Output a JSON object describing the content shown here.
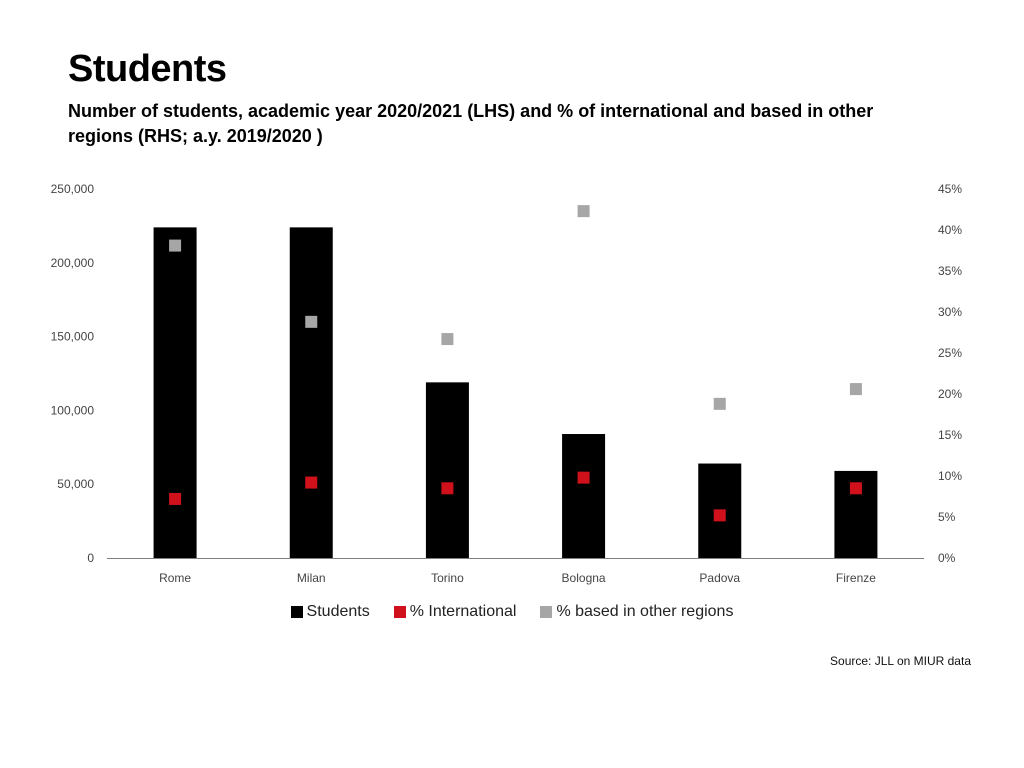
{
  "title": "Students",
  "subtitle": "Number of students, academic year 2020/2021 (LHS) and % of international and based in other regions (RHS; a.y. 2019/2020 )",
  "source": "Source: JLL on MIUR data",
  "colors": {
    "students": "#000000",
    "international": "#d0111b",
    "other_regions": "#a6a6a6",
    "axis": "#7f7f7f"
  },
  "chart_data": {
    "type": "bar",
    "categories": [
      "Rome",
      "Milan",
      "Torino",
      "Bologna",
      "Padova",
      "Firenze"
    ],
    "series": [
      {
        "name": "Students",
        "type": "bar",
        "axis": "left",
        "values": [
          224000,
          224000,
          119000,
          84000,
          64000,
          59000
        ]
      },
      {
        "name": "% International",
        "type": "scatter",
        "axis": "right",
        "values": [
          7.2,
          9.2,
          8.5,
          9.8,
          5.2,
          8.5
        ]
      },
      {
        "name": "% based in other regions",
        "type": "scatter",
        "axis": "right",
        "values": [
          38.1,
          28.8,
          26.7,
          42.3,
          18.8,
          20.6
        ]
      }
    ],
    "y_left": {
      "lim": [
        0,
        250000
      ],
      "ticks": [
        0,
        50000,
        100000,
        150000,
        200000,
        250000
      ],
      "tick_labels": [
        "0",
        "50,000",
        "100,000",
        "150,000",
        "200,000",
        "250,000"
      ]
    },
    "y_right": {
      "lim": [
        0,
        45
      ],
      "ticks": [
        0,
        5,
        10,
        15,
        20,
        25,
        30,
        35,
        40,
        45
      ],
      "tick_labels": [
        "0%",
        "5%",
        "10%",
        "15%",
        "20%",
        "25%",
        "30%",
        "35%",
        "40%",
        "45%"
      ]
    },
    "grid": false,
    "legend_position": "bottom"
  }
}
